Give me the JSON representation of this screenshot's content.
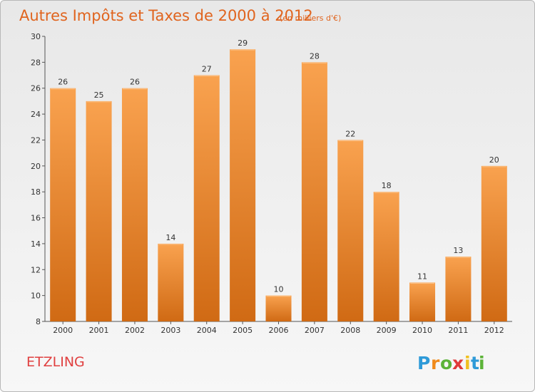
{
  "chart_data": {
    "type": "bar",
    "title": "Autres Impôts et Taxes de 2000 à 2012",
    "subtitle": "(en milliers d'€)",
    "categories": [
      "2000",
      "2001",
      "2002",
      "2003",
      "2004",
      "2005",
      "2006",
      "2007",
      "2008",
      "2009",
      "2010",
      "2011",
      "2012"
    ],
    "values": [
      26,
      25,
      26,
      14,
      27,
      29,
      10,
      28,
      22,
      18,
      11,
      13,
      20
    ],
    "ylim": [
      8,
      30
    ],
    "yticks": [
      8,
      10,
      12,
      14,
      16,
      18,
      20,
      22,
      24,
      26,
      28,
      30
    ],
    "grid": false,
    "bar_color_light": "#f9a24f",
    "bar_color_dark": "#d06a14"
  },
  "commune": "ETZLING",
  "logo": {
    "letters": [
      "P",
      "r",
      "o",
      "x",
      "i",
      "t",
      "i"
    ],
    "colors": [
      "#2e9ad8",
      "#f08a1c",
      "#5cb338",
      "#e03a3a",
      "#f0c020",
      "#2e9ad8",
      "#5cb338"
    ]
  }
}
